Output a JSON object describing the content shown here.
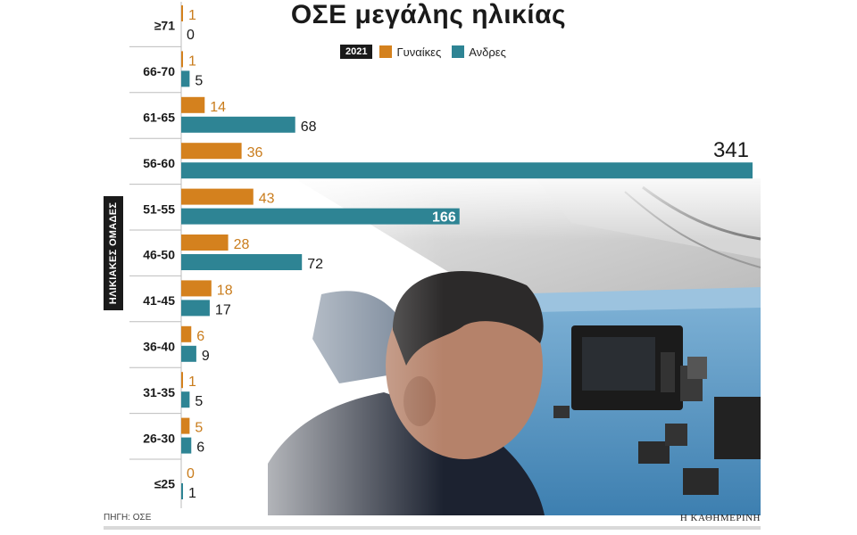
{
  "title": "ΟΣΕ μεγάλης ηλικίας",
  "legend": {
    "year": "2021",
    "women": "Γυναίκες",
    "men": "Ανδρες"
  },
  "axis_title": "ΗΛΙΚΙΑΚΕΣ ΟΜΑΔΕΣ",
  "source": "ΠΗΓΗ: ΟΣΕ",
  "brand": "Η ΚΑΘΗΜΕΡΙΝΗ",
  "colors": {
    "women": "#D4811E",
    "men": "#2E8494",
    "women_label": "#C97C1C",
    "text": "#1a1a1a"
  },
  "chart_data": {
    "type": "bar",
    "orientation": "horizontal",
    "categories": [
      "≥71",
      "66-70",
      "61-65",
      "56-60",
      "51-55",
      "46-50",
      "41-45",
      "36-40",
      "31-35",
      "26-30",
      "≤25"
    ],
    "series": [
      {
        "name": "Γυναίκες",
        "values": [
          1,
          1,
          14,
          36,
          43,
          28,
          18,
          6,
          1,
          5,
          0
        ]
      },
      {
        "name": "Ανδρες",
        "values": [
          0,
          5,
          68,
          341,
          166,
          72,
          17,
          9,
          5,
          6,
          1
        ]
      }
    ],
    "year": "2021",
    "ylabel": "ΗΛΙΚΙΑΚΕΣ ΟΜΑΔΕΣ"
  }
}
